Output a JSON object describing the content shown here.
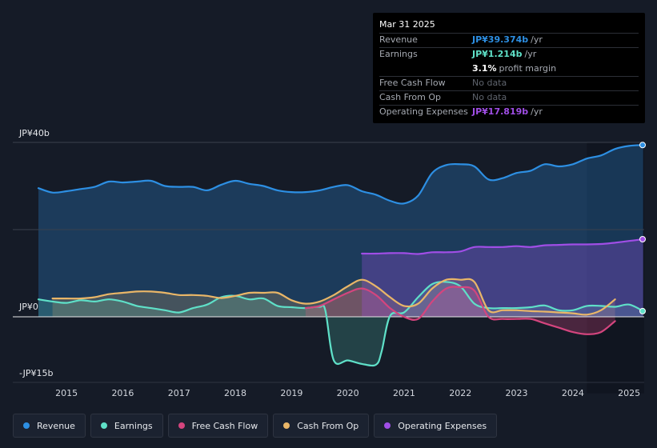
{
  "chart_data": {
    "type": "line",
    "title": "",
    "currency": "JP¥",
    "unit": "b",
    "y_tick_labels": [
      "JP¥40b",
      "JP¥0",
      "-JP¥15b"
    ],
    "y_ticks": [
      40,
      0,
      -15
    ],
    "ylim": [
      -15,
      40
    ],
    "xlim": [
      2014.5,
      2025.25
    ],
    "x_tick_labels": [
      "2015",
      "2016",
      "2017",
      "2018",
      "2019",
      "2020",
      "2021",
      "2022",
      "2023",
      "2024",
      "2025"
    ],
    "x_ticks": [
      2015,
      2016,
      2017,
      2018,
      2019,
      2020,
      2021,
      2022,
      2023,
      2024,
      2025
    ],
    "forecast_start": 2024.25,
    "series": [
      {
        "name": "Revenue",
        "key": "revenue",
        "color": "#2d8fe3",
        "fill": true,
        "x": [
          2014.5,
          2014.75,
          2015.0,
          2015.25,
          2015.5,
          2015.75,
          2016.0,
          2016.25,
          2016.5,
          2016.75,
          2017.0,
          2017.25,
          2017.5,
          2017.75,
          2018.0,
          2018.25,
          2018.5,
          2018.75,
          2019.0,
          2019.25,
          2019.5,
          2019.75,
          2020.0,
          2020.25,
          2020.5,
          2020.75,
          2021.0,
          2021.25,
          2021.5,
          2021.75,
          2022.0,
          2022.25,
          2022.5,
          2022.75,
          2023.0,
          2023.25,
          2023.5,
          2023.75,
          2024.0,
          2024.25,
          2024.5,
          2024.75,
          2025.0,
          2025.25
        ],
        "values": [
          29.5,
          28.5,
          28.8,
          29.3,
          29.8,
          31.0,
          30.8,
          31.0,
          31.2,
          30.0,
          29.8,
          29.8,
          29.0,
          30.3,
          31.2,
          30.5,
          30.0,
          29.0,
          28.6,
          28.6,
          29.0,
          29.8,
          30.2,
          28.8,
          28.0,
          26.6,
          26.0,
          27.8,
          33.0,
          34.8,
          35.0,
          34.5,
          31.5,
          31.8,
          33.0,
          33.5,
          35.0,
          34.5,
          35.0,
          36.3,
          37.0,
          38.5,
          39.2,
          39.4
        ]
      },
      {
        "name": "Earnings",
        "key": "earnings",
        "color": "#5fe0c8",
        "fill": true,
        "x": [
          2014.5,
          2014.75,
          2015.0,
          2015.25,
          2015.5,
          2015.75,
          2016.0,
          2016.25,
          2016.5,
          2016.75,
          2017.0,
          2017.25,
          2017.5,
          2017.75,
          2018.0,
          2018.25,
          2018.5,
          2018.75,
          2019.0,
          2019.25,
          2019.5,
          2019.6,
          2019.75,
          2020.0,
          2020.25,
          2020.5,
          2020.6,
          2020.75,
          2021.0,
          2021.25,
          2021.5,
          2021.75,
          2022.0,
          2022.25,
          2022.5,
          2022.75,
          2023.0,
          2023.25,
          2023.5,
          2023.75,
          2024.0,
          2024.25,
          2024.5,
          2024.75,
          2025.0,
          2025.25
        ],
        "values": [
          4.0,
          3.5,
          3.2,
          3.8,
          3.5,
          4.0,
          3.5,
          2.5,
          2.0,
          1.5,
          1.0,
          2.0,
          2.8,
          4.5,
          4.8,
          4.0,
          4.2,
          2.5,
          2.2,
          2.0,
          2.3,
          1.5,
          -10.0,
          -10.0,
          -10.8,
          -11.0,
          -8.0,
          0.2,
          1.0,
          4.5,
          7.5,
          8.0,
          7.0,
          3.0,
          2.0,
          2.0,
          2.0,
          2.2,
          2.6,
          1.5,
          1.5,
          2.5,
          2.5,
          2.3,
          2.8,
          1.3
        ]
      },
      {
        "name": "Free Cash Flow",
        "key": "fcf",
        "color": "#d4457e",
        "fill": true,
        "x": [
          2019.25,
          2019.5,
          2019.75,
          2020.0,
          2020.25,
          2020.5,
          2020.75,
          2021.0,
          2021.25,
          2021.5,
          2021.75,
          2022.0,
          2022.25,
          2022.5,
          2022.75,
          2023.0,
          2023.25,
          2023.5,
          2023.75,
          2024.0,
          2024.25,
          2024.5,
          2024.75
        ],
        "values": [
          2.0,
          2.5,
          4.0,
          5.5,
          6.5,
          5.0,
          2.0,
          0.0,
          -0.5,
          3.5,
          6.5,
          6.8,
          6.0,
          0.0,
          -0.5,
          -0.5,
          -0.5,
          -1.5,
          -2.5,
          -3.5,
          -4.0,
          -3.5,
          -1.0
        ]
      },
      {
        "name": "Cash From Op",
        "key": "cfo",
        "color": "#e9b668",
        "fill": true,
        "x": [
          2014.75,
          2015.0,
          2015.25,
          2015.5,
          2015.75,
          2016.0,
          2016.25,
          2016.5,
          2016.75,
          2017.0,
          2017.25,
          2017.5,
          2017.75,
          2018.0,
          2018.25,
          2018.5,
          2018.75,
          2019.0,
          2019.25,
          2019.5,
          2019.75,
          2020.0,
          2020.25,
          2020.5,
          2020.75,
          2021.0,
          2021.25,
          2021.5,
          2021.75,
          2022.0,
          2022.25,
          2022.5,
          2022.75,
          2023.0,
          2023.25,
          2023.5,
          2023.75,
          2024.0,
          2024.25,
          2024.5,
          2024.75
        ],
        "values": [
          4.2,
          4.2,
          4.2,
          4.5,
          5.2,
          5.5,
          5.8,
          5.8,
          5.5,
          5.0,
          5.0,
          4.8,
          4.3,
          4.8,
          5.5,
          5.5,
          5.5,
          3.8,
          3.0,
          3.5,
          5.0,
          7.0,
          8.5,
          7.0,
          4.5,
          2.5,
          3.0,
          6.5,
          8.5,
          8.5,
          8.0,
          1.5,
          1.5,
          1.5,
          1.3,
          1.2,
          1.0,
          0.8,
          0.5,
          1.5,
          4.0
        ]
      },
      {
        "name": "Operating Expenses",
        "key": "opex",
        "color": "#a04ee6",
        "fill": true,
        "x": [
          2020.25,
          2020.5,
          2020.75,
          2021.0,
          2021.25,
          2021.5,
          2021.75,
          2022.0,
          2022.25,
          2022.5,
          2022.75,
          2023.0,
          2023.25,
          2023.5,
          2023.75,
          2024.0,
          2024.25,
          2024.5,
          2024.75,
          2025.0,
          2025.25
        ],
        "values": [
          14.5,
          14.5,
          14.6,
          14.6,
          14.4,
          14.8,
          14.8,
          15.0,
          16.0,
          16.0,
          16.0,
          16.2,
          16.0,
          16.4,
          16.5,
          16.6,
          16.6,
          16.7,
          17.0,
          17.4,
          17.8
        ]
      }
    ]
  },
  "tooltip": {
    "date": "Mar 31 2025",
    "rows": [
      {
        "label": "Revenue",
        "value": "JP¥39.374b",
        "unit": "/yr",
        "color": "#2d8fe3"
      },
      {
        "label": "Earnings",
        "value": "JP¥1.214b",
        "unit": "/yr",
        "color": "#5fe0c8"
      },
      {
        "label": "",
        "value": "3.1%",
        "unit": "profit margin",
        "color": "#ffffff"
      },
      {
        "label": "Free Cash Flow",
        "value": "",
        "unit": "",
        "nodata": "No data"
      },
      {
        "label": "Cash From Op",
        "value": "",
        "unit": "",
        "nodata": "No data"
      },
      {
        "label": "Operating Expenses",
        "value": "JP¥17.819b",
        "unit": "/yr",
        "color": "#a04ee6"
      }
    ]
  },
  "legend": [
    {
      "label": "Revenue",
      "color": "#2d8fe3"
    },
    {
      "label": "Earnings",
      "color": "#5fe0c8"
    },
    {
      "label": "Free Cash Flow",
      "color": "#d4457e"
    },
    {
      "label": "Cash From Op",
      "color": "#e9b668"
    },
    {
      "label": "Operating Expenses",
      "color": "#a04ee6"
    }
  ]
}
